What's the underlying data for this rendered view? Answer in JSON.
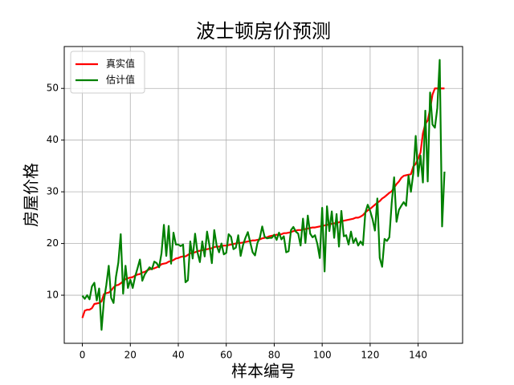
{
  "chart_data": {
    "type": "line",
    "title": "波士顿房价预测",
    "xlabel": "样本编号",
    "ylabel": "房屋价格",
    "x": [
      0,
      1,
      2,
      3,
      4,
      5,
      6,
      7,
      8,
      9,
      10,
      11,
      12,
      13,
      14,
      15,
      16,
      17,
      18,
      19,
      20,
      21,
      22,
      23,
      24,
      25,
      26,
      27,
      28,
      29,
      30,
      31,
      32,
      33,
      34,
      35,
      36,
      37,
      38,
      39,
      40,
      41,
      42,
      43,
      44,
      45,
      46,
      47,
      48,
      49,
      50,
      51,
      52,
      53,
      54,
      55,
      56,
      57,
      58,
      59,
      60,
      61,
      62,
      63,
      64,
      65,
      66,
      67,
      68,
      69,
      70,
      71,
      72,
      73,
      74,
      75,
      76,
      77,
      78,
      79,
      80,
      81,
      82,
      83,
      84,
      85,
      86,
      87,
      88,
      89,
      90,
      91,
      92,
      93,
      94,
      95,
      96,
      97,
      98,
      99,
      100,
      101,
      102,
      103,
      104,
      105,
      106,
      107,
      108,
      109,
      110,
      111,
      112,
      113,
      114,
      115,
      116,
      117,
      118,
      119,
      120,
      121,
      122,
      123,
      124,
      125,
      126,
      127,
      128,
      129,
      130,
      131,
      132,
      133,
      134,
      135,
      136,
      137,
      138,
      139,
      140,
      141,
      142,
      143,
      144,
      145,
      146,
      147,
      148,
      149,
      150,
      151
    ],
    "series": [
      {
        "name": "真实值",
        "color": "#ff0000",
        "values": [
          5.6,
          7.0,
          7.2,
          7.2,
          7.5,
          8.3,
          8.4,
          8.5,
          8.8,
          10.2,
          10.4,
          10.5,
          10.9,
          11.5,
          11.9,
          12.0,
          12.3,
          12.7,
          13.1,
          13.3,
          13.4,
          13.5,
          13.8,
          14.0,
          14.1,
          14.4,
          14.5,
          14.8,
          15.0,
          15.1,
          15.2,
          15.4,
          15.6,
          16.0,
          16.1,
          16.2,
          16.5,
          16.6,
          16.8,
          17.1,
          17.2,
          17.4,
          17.5,
          17.5,
          17.8,
          18.1,
          18.2,
          18.3,
          18.5,
          18.6,
          18.7,
          18.8,
          18.9,
          19.0,
          19.1,
          19.3,
          19.4,
          19.4,
          19.5,
          19.6,
          19.6,
          19.7,
          19.8,
          19.9,
          20.0,
          20.1,
          20.1,
          20.2,
          20.3,
          20.4,
          20.5,
          20.6,
          20.6,
          20.7,
          20.8,
          21.0,
          21.1,
          21.2,
          21.4,
          21.5,
          21.6,
          21.7,
          21.7,
          21.8,
          22.0,
          22.0,
          22.1,
          22.2,
          22.4,
          22.5,
          22.6,
          22.6,
          22.7,
          22.8,
          22.9,
          23.0,
          23.1,
          23.1,
          23.2,
          23.3,
          23.4,
          23.5,
          23.6,
          23.7,
          23.8,
          23.9,
          24.0,
          24.1,
          24.3,
          24.4,
          24.5,
          24.6,
          24.7,
          24.8,
          25.0,
          25.0,
          25.2,
          25.5,
          26.0,
          26.4,
          26.7,
          27.1,
          27.5,
          27.9,
          28.2,
          28.7,
          29.0,
          29.4,
          29.8,
          30.1,
          30.8,
          31.5,
          32.0,
          32.7,
          33.1,
          33.2,
          33.3,
          33.4,
          34.9,
          35.4,
          36.4,
          37.6,
          41.3,
          43.1,
          43.8,
          46.0,
          48.8,
          50,
          50,
          50,
          50,
          50
        ]
      },
      {
        "name": "估计值",
        "color": "#008000",
        "values": [
          9.9,
          9.3,
          10.0,
          9.2,
          11.7,
          12.4,
          9.0,
          11.3,
          3.3,
          9.0,
          12.0,
          15.7,
          9.5,
          8.5,
          13.5,
          16.3,
          21.8,
          10.3,
          15.7,
          11.4,
          13.0,
          11.4,
          13.6,
          15.2,
          16.9,
          12.8,
          14.0,
          14.7,
          15.4,
          15.0,
          16.5,
          16.2,
          15.4,
          18.1,
          23.6,
          17.6,
          23.4,
          16.1,
          22.1,
          19.8,
          19.8,
          19.5,
          19.8,
          12.5,
          12.9,
          20.4,
          17.1,
          21.9,
          18.3,
          16.4,
          20.4,
          17.5,
          22.3,
          19.6,
          16.2,
          22.6,
          19.6,
          18.3,
          20.0,
          17.9,
          18.2,
          21.8,
          21.3,
          18.9,
          19.2,
          21.6,
          17.6,
          19.7,
          21.1,
          22.2,
          20.2,
          18.3,
          17.7,
          20.1,
          21.1,
          23.3,
          21.3,
          21.0,
          21.1,
          21.1,
          21.7,
          20.7,
          22.1,
          20.8,
          21.4,
          18.3,
          18.5,
          22.6,
          23.2,
          22.3,
          21.9,
          19.6,
          24.8,
          20.1,
          25.4,
          21.9,
          21.2,
          21.6,
          19.9,
          17.2,
          26.9,
          14.6,
          27.2,
          22.4,
          26.2,
          21.1,
          25.7,
          19.4,
          26.3,
          21.4,
          21.6,
          19.8,
          22.3,
          20.1,
          21.0,
          19.6,
          20.4,
          19.7,
          26.0,
          27.5,
          26.3,
          24.7,
          22.5,
          28.7,
          17.2,
          15.5,
          20.9,
          20.5,
          21.2,
          27.9,
          32.8,
          24.2,
          26.5,
          27.3,
          28.0,
          27.3,
          33.1,
          30.0,
          33.6,
          40.8,
          33.0,
          37.0,
          31.8,
          45.7,
          32.0,
          49.2,
          43.0,
          42.4,
          46.2,
          55.5,
          23.3,
          33.9
        ]
      }
    ],
    "xlim": [
      -7.55,
      158.55
    ],
    "ylim": [
      0.7,
      58.1
    ],
    "xticks": [
      0,
      20,
      40,
      60,
      80,
      100,
      120,
      140
    ],
    "yticks": [
      10,
      20,
      30,
      40,
      50
    ],
    "grid": true,
    "legend": "upper left"
  }
}
